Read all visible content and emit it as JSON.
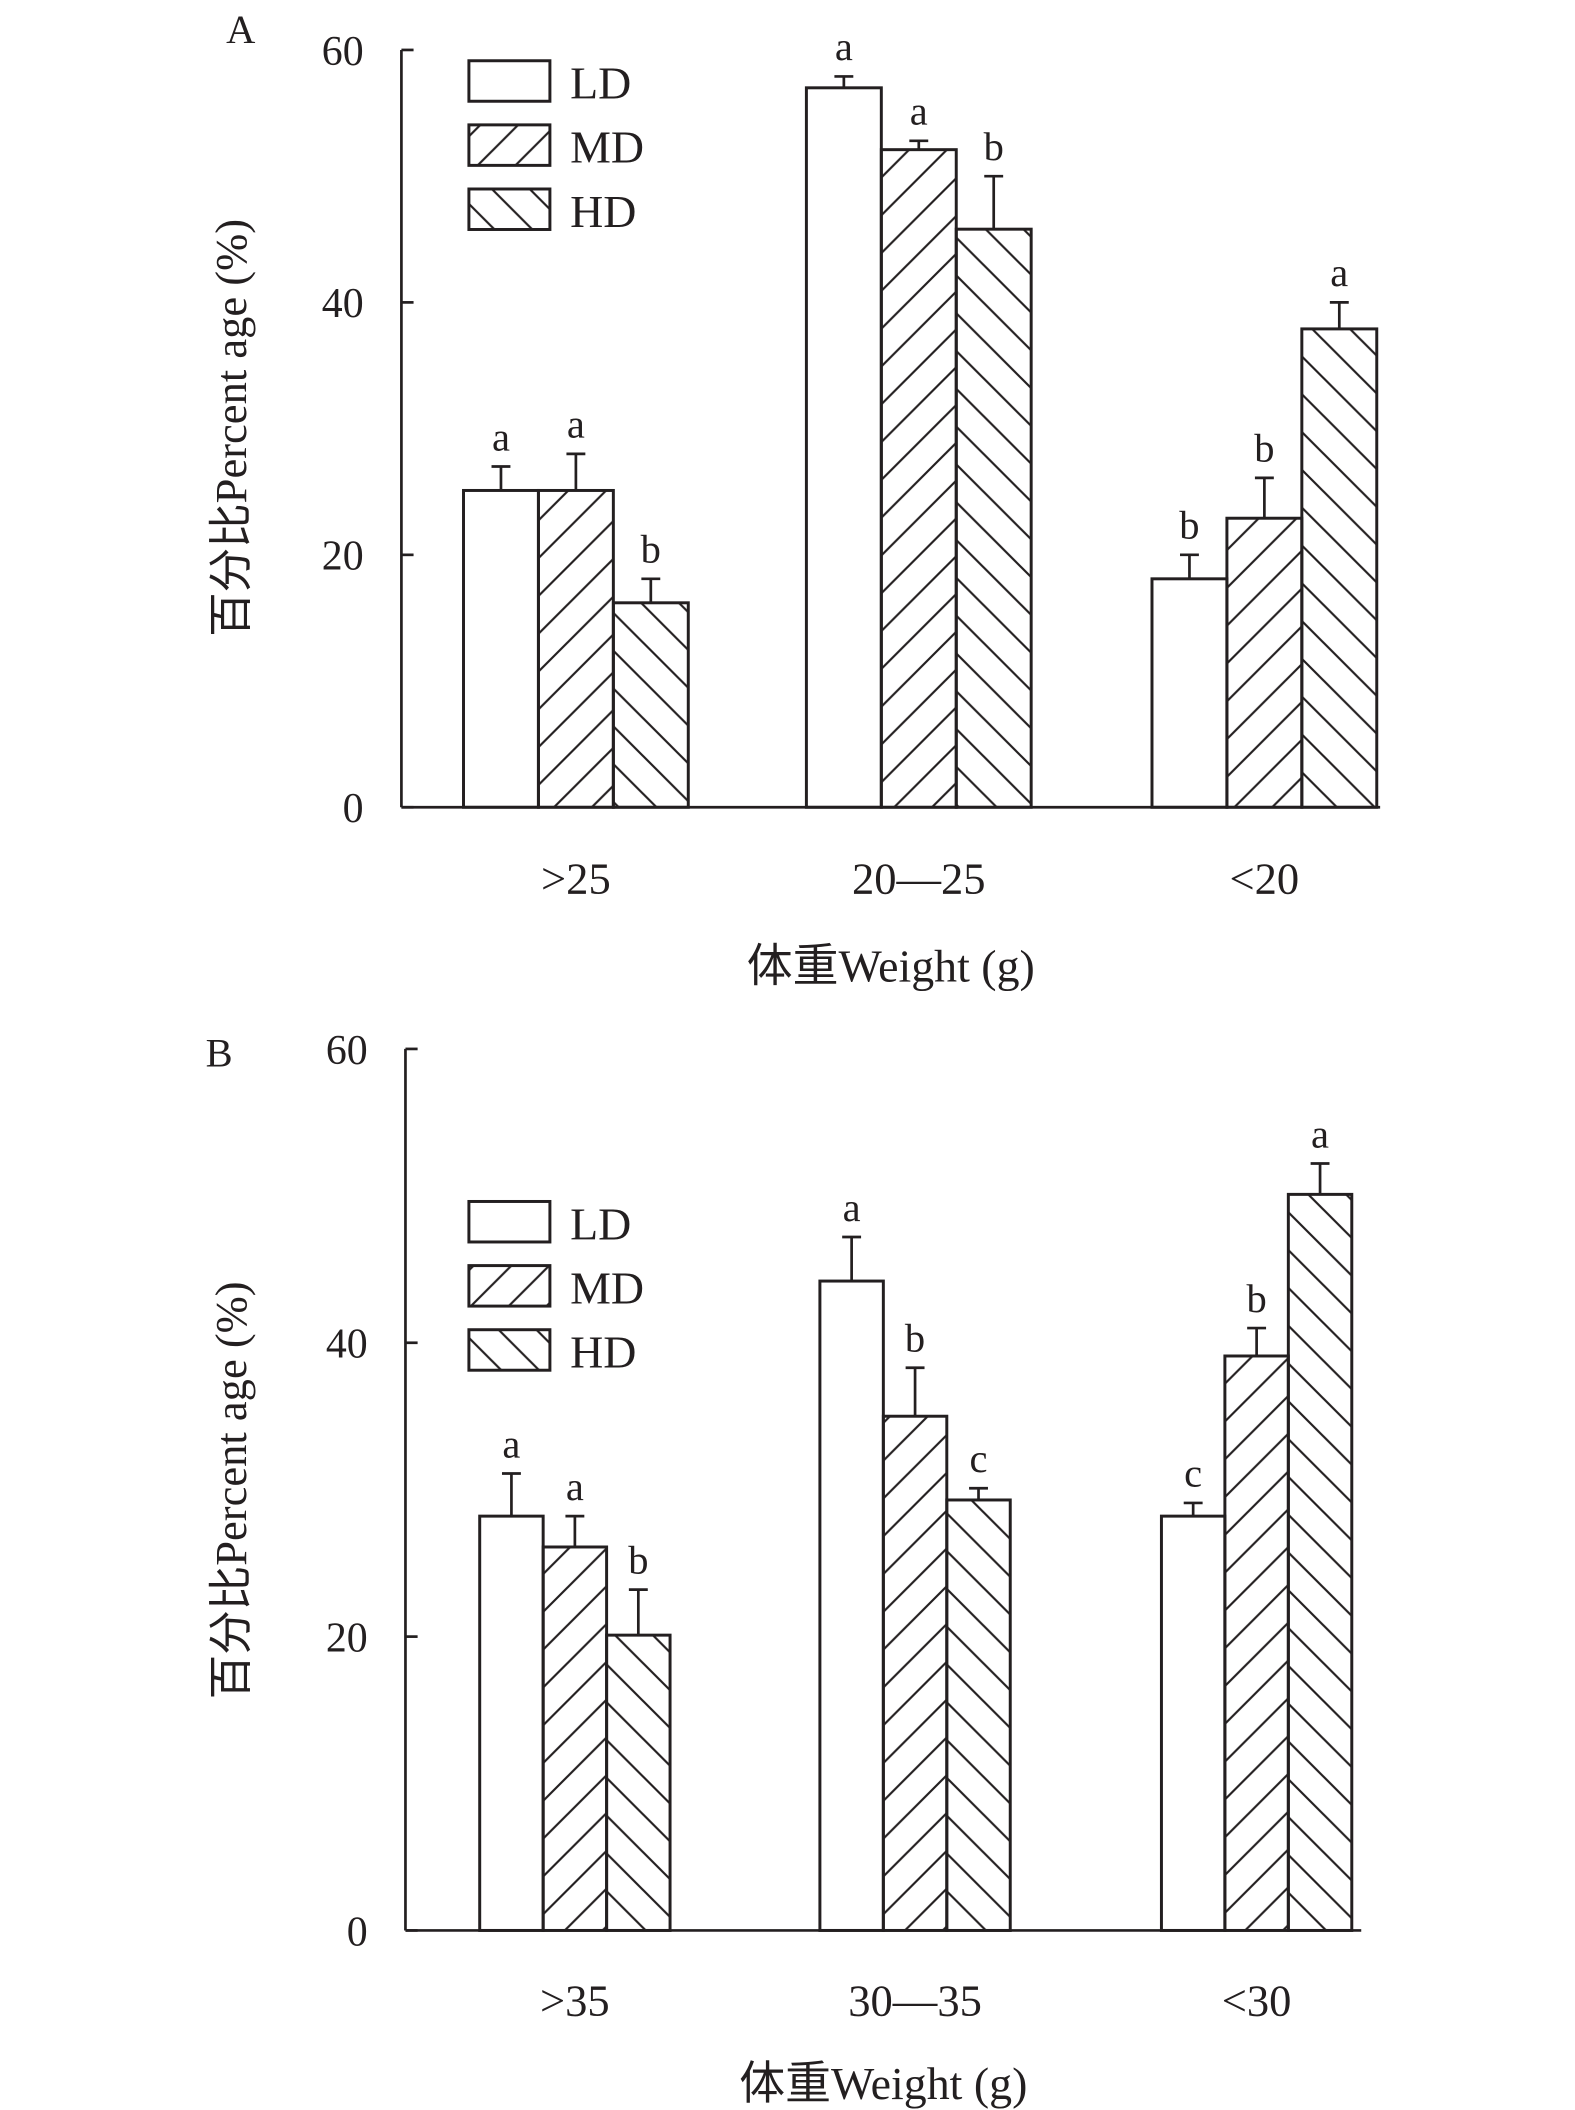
{
  "chart_data": [
    {
      "type": "bar",
      "panel_label": "A",
      "xlabel": "体重Weight (g)",
      "ylabel": "百分比Percent age (%)",
      "ylim": [
        0,
        60
      ],
      "yticks": [
        "0",
        "20",
        "40",
        "60"
      ],
      "categories": [
        ">25",
        "20—25",
        "<20"
      ],
      "legend_position": "top-left",
      "series": [
        {
          "name": "LD",
          "values": [
            25.1,
            57.0,
            18.1
          ],
          "errors": [
            1.9,
            0.9,
            1.9
          ],
          "letters": [
            "a",
            "a",
            "b"
          ]
        },
        {
          "name": "MD",
          "values": [
            25.1,
            52.1,
            22.9
          ],
          "errors": [
            2.9,
            0.7,
            3.2
          ],
          "letters": [
            "a",
            "a",
            "b"
          ]
        },
        {
          "name": "HD",
          "values": [
            16.2,
            45.8,
            37.9
          ],
          "errors": [
            1.9,
            4.2,
            2.1
          ],
          "letters": [
            "b",
            "b",
            "a"
          ]
        }
      ]
    },
    {
      "type": "bar",
      "panel_label": "B",
      "xlabel": "体重Weight (g)",
      "ylabel": "百分比Percent age (%)",
      "ylim": [
        0,
        60
      ],
      "yticks": [
        "0",
        "20",
        "40",
        "60"
      ],
      "categories": [
        ">35",
        "30—35",
        "<30"
      ],
      "legend_position": "top-left",
      "series": [
        {
          "name": "LD",
          "values": [
            28.2,
            44.2,
            28.2
          ],
          "errors": [
            2.9,
            3.0,
            0.9
          ],
          "letters": [
            "a",
            "a",
            "c"
          ]
        },
        {
          "name": "MD",
          "values": [
            26.1,
            35.0,
            39.1
          ],
          "errors": [
            2.1,
            3.3,
            1.9
          ],
          "letters": [
            "a",
            "b",
            "b"
          ]
        },
        {
          "name": "HD",
          "values": [
            20.1,
            29.3,
            50.1
          ],
          "errors": [
            3.1,
            0.8,
            2.1
          ],
          "letters": [
            "b",
            "c",
            "a"
          ]
        }
      ]
    }
  ]
}
